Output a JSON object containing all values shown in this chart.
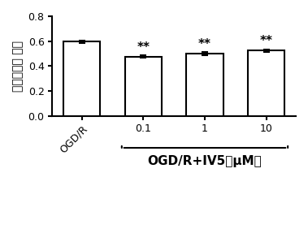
{
  "categories": [
    "OGD/R",
    "0.1",
    "1",
    "10"
  ],
  "values": [
    0.595,
    0.475,
    0.5,
    0.525
  ],
  "errors": [
    0.008,
    0.01,
    0.012,
    0.01
  ],
  "bar_colors": [
    "white",
    "white",
    "white",
    "white"
  ],
  "bar_edgecolors": [
    "black",
    "black",
    "black",
    "black"
  ],
  "ylabel": "乳酸脱氢酶 出率",
  "ylim": [
    0.0,
    0.8
  ],
  "yticks": [
    0.0,
    0.2,
    0.4,
    0.6,
    0.8
  ],
  "significance": [
    "",
    "**",
    "**",
    "**"
  ],
  "xlabel_group": "OGD/R+IV5（μM）",
  "group_tick_labels": [
    "0.1",
    "1",
    "10"
  ],
  "background_color": "#ffffff",
  "bar_width": 0.6,
  "sig_fontsize": 11,
  "ylabel_fontsize": 10,
  "tick_fontsize": 9,
  "xlabel_group_fontsize": 11
}
